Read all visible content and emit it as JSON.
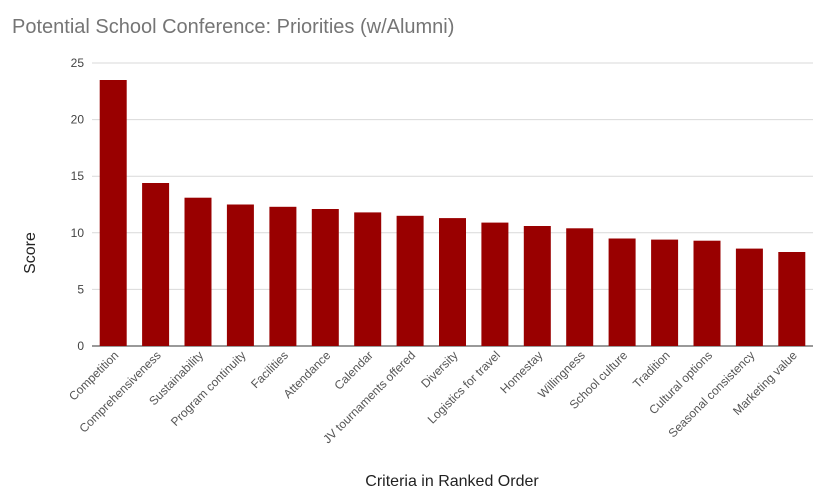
{
  "chart_data": {
    "type": "bar",
    "title": "Potential School Conference: Priorities (w/Alumni)",
    "xlabel": "Criteria in Ranked Order",
    "ylabel": "Score",
    "ylim": [
      0,
      25
    ],
    "yticks": [
      0,
      5,
      10,
      15,
      20,
      25
    ],
    "grid": true,
    "legend": "none",
    "bar_color": "#990000",
    "categories": [
      "Competition",
      "Comprehensiveness",
      "Sustainability",
      "Program continuity",
      "Facilities",
      "Attendance",
      "Calendar",
      "JV tournaments offered",
      "Diversity",
      "Logistics for travel",
      "Homestay",
      "Willingness",
      "School culture",
      "Tradition",
      "Cultural options",
      "Seasonal consistency",
      "Marketing value"
    ],
    "values": [
      23.5,
      14.4,
      13.1,
      12.5,
      12.3,
      12.1,
      11.8,
      11.5,
      11.3,
      10.9,
      10.6,
      10.4,
      9.5,
      9.4,
      9.3,
      8.6,
      8.3
    ]
  }
}
